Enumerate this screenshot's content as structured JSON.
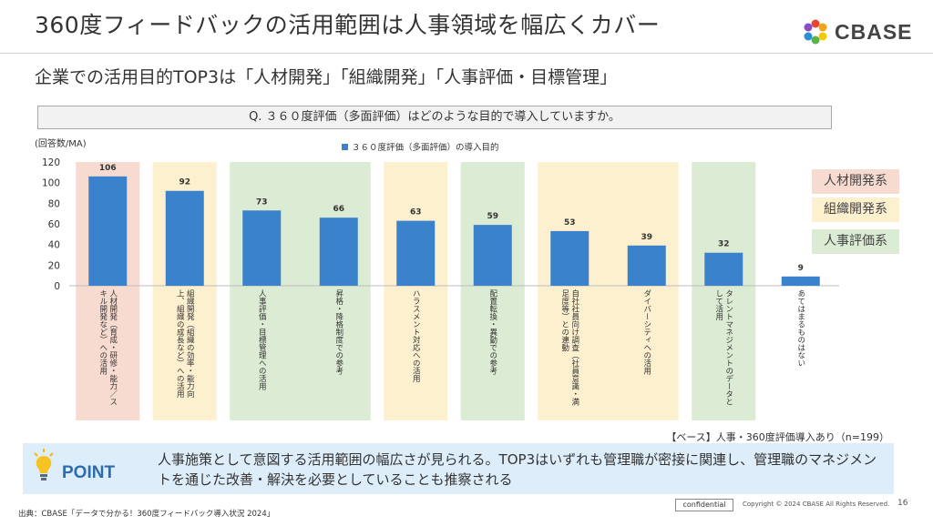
{
  "title": "360度フィードバックの活用範囲は人事領域を幅広くカバー",
  "subtitle": "企業での活用目的TOP3は「人材開発」「組織開発」「人事評価・目標管理」",
  "question": "Q. ３６０度評価（多面評価）はどのような目的で導入していますか。",
  "logo": {
    "text": "CBASE"
  },
  "chart_data": {
    "type": "bar",
    "unit_label": "(回答数/MA)",
    "legend": "３６０度評価（多面評価）の導入目的",
    "ylim": [
      0,
      120
    ],
    "yticks": [
      0,
      20,
      40,
      60,
      80,
      100,
      120
    ],
    "categories": [
      "人材開発（育成・研修・能力／スキル開発など）への活用",
      "組織開発（組織の効率・能力向上、組織の成長など）への活用",
      "人事評価・目標管理への活用",
      "昇格・降格制度での参考",
      "ハラスメント対応への活用",
      "配置転換・異動での参考",
      "自社社員向け調査（社員意識・満足度等）との連動",
      "ダイバーシティへの活用",
      "タレントマネジメントのデータとして活用",
      "あてはまるものはない"
    ],
    "category_lines": [
      [
        "人材開発（育成・研修・能力／ス",
        "キル開発など）への活用"
      ],
      [
        "組織開発（組織の効率・能力向",
        "上、組織の成長など）への活用"
      ],
      [
        "人事評価・目標管理への活用"
      ],
      [
        "昇格・降格制度での参考"
      ],
      [
        "ハラスメント対応への活用"
      ],
      [
        "配置転換・異動での参考"
      ],
      [
        "自社社員向け調査（社員意識・満",
        "足度等）との連動"
      ],
      [
        "ダイバーシティへの活用"
      ],
      [
        "タレントマネジメントのデータと",
        "して活用"
      ],
      [
        "あてはまるものはない"
      ]
    ],
    "values": [
      106,
      92,
      73,
      66,
      63,
      59,
      53,
      39,
      32,
      9
    ],
    "groups": [
      "人材開発系",
      "組織開発系",
      "人事評価系",
      "人事評価系",
      "組織開発系",
      "人事評価系",
      "組織開発系",
      "組織開発系",
      "人事評価系",
      null
    ],
    "bar_color": "#3b82cc",
    "group_colors": {
      "人材開発系": "#f7dbd0",
      "組織開発系": "#fdf0cf",
      "人事評価系": "#dcebd4"
    }
  },
  "tags": {
    "hr_dev": "人材開発系",
    "org_dev": "組織開発系",
    "evaluation": "人事評価系"
  },
  "base_note": "【ベース】人事・360度評価導入あり（n=199）",
  "point": {
    "label": "POINT",
    "text": "人事施策として意図する活用範囲の幅広さが見られる。TOP3はいずれも管理職が密接に関連し、管理職のマネジメントを通じた改善・解決を必要としていることも推察される"
  },
  "footer": {
    "source": "出典：CBASE「データで分かる！360度フィードバック導入状況 2024」",
    "confidential": "confidential",
    "copyright": "Copyright © 2024 CBASE All Rights Reserved.",
    "page": "16"
  }
}
